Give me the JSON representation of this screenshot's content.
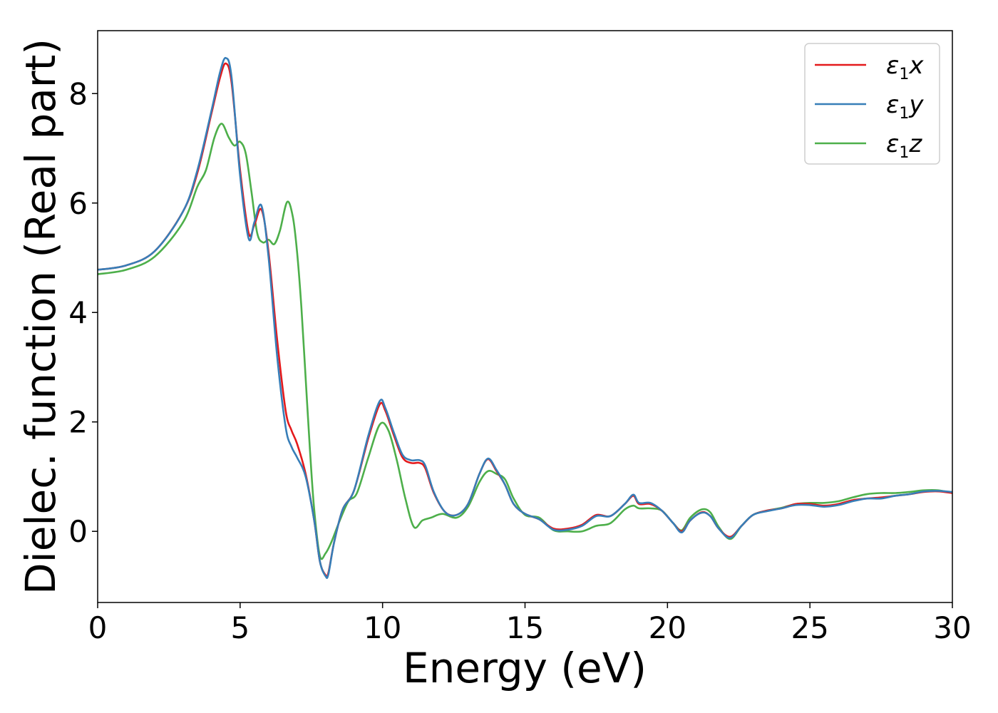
{
  "chart_data": {
    "type": "line",
    "xlabel": "Energy (eV)",
    "ylabel": "Dielec. function (Real part)",
    "xlim": [
      0,
      30
    ],
    "ylim": [
      -1.3,
      9.15
    ],
    "xticks": [
      0,
      5,
      10,
      15,
      20,
      25,
      30
    ],
    "yticks": [
      0,
      2,
      4,
      6,
      8
    ],
    "grid": false,
    "legend_position": "top-right",
    "series": [
      {
        "name": "ε1x",
        "legend": {
          "symbol": "ε",
          "sub": "1",
          "var": "x"
        },
        "color": "#e41a1c",
        "x": [
          0,
          1,
          2,
          3,
          3.5,
          4,
          4.3,
          4.5,
          4.7,
          5,
          5.3,
          5.5,
          5.75,
          6,
          6.3,
          6.6,
          6.8,
          7,
          7.3,
          7.6,
          7.8,
          8,
          8.1,
          8.3,
          8.6,
          9,
          9.5,
          9.9,
          10.1,
          10.4,
          10.7,
          11,
          11.3,
          11.5,
          11.8,
          12.2,
          12.6,
          13,
          13.4,
          13.7,
          14,
          14.3,
          14.6,
          15,
          15.5,
          16,
          16.5,
          17,
          17.5,
          18,
          18.5,
          18.8,
          19,
          19.4,
          19.8,
          20.2,
          20.5,
          20.8,
          21.2,
          21.5,
          21.8,
          22.2,
          22.6,
          23,
          23.5,
          24,
          24.5,
          25,
          25.5,
          26,
          26.5,
          27,
          27.5,
          28,
          28.5,
          29,
          29.5,
          30
        ],
        "y": [
          4.78,
          4.86,
          5.12,
          5.85,
          6.55,
          7.65,
          8.3,
          8.55,
          8.2,
          6.6,
          5.45,
          5.6,
          5.88,
          5.1,
          3.5,
          2.2,
          1.85,
          1.6,
          1.05,
          0.2,
          -0.55,
          -0.8,
          -0.75,
          -0.2,
          0.4,
          0.75,
          1.7,
          2.32,
          2.2,
          1.75,
          1.35,
          1.25,
          1.25,
          1.15,
          0.7,
          0.35,
          0.3,
          0.5,
          1.05,
          1.32,
          1.1,
          0.85,
          0.5,
          0.32,
          0.22,
          0.05,
          0.05,
          0.12,
          0.3,
          0.28,
          0.5,
          0.65,
          0.5,
          0.5,
          0.38,
          0.15,
          0.0,
          0.2,
          0.35,
          0.28,
          0.05,
          -0.1,
          0.1,
          0.3,
          0.38,
          0.42,
          0.5,
          0.5,
          0.47,
          0.5,
          0.57,
          0.6,
          0.62,
          0.65,
          0.68,
          0.72,
          0.73,
          0.7
        ]
      },
      {
        "name": "ε1y",
        "legend": {
          "symbol": "ε",
          "sub": "1",
          "var": "y"
        },
        "color": "#377eb8",
        "x": [
          0,
          1,
          2,
          3,
          3.5,
          4,
          4.3,
          4.5,
          4.7,
          5,
          5.3,
          5.5,
          5.75,
          6,
          6.3,
          6.6,
          6.8,
          7,
          7.3,
          7.6,
          7.8,
          8,
          8.1,
          8.3,
          8.6,
          9,
          9.5,
          9.9,
          10.1,
          10.4,
          10.7,
          11,
          11.3,
          11.5,
          11.8,
          12.2,
          12.6,
          13,
          13.4,
          13.7,
          14,
          14.3,
          14.6,
          15,
          15.5,
          16,
          16.5,
          17,
          17.5,
          18,
          18.5,
          18.8,
          19,
          19.4,
          19.8,
          20.2,
          20.5,
          20.8,
          21.2,
          21.5,
          21.8,
          22.2,
          22.6,
          23,
          23.5,
          24,
          24.5,
          25,
          25.5,
          26,
          26.5,
          27,
          27.5,
          28,
          28.5,
          29,
          29.5,
          30
        ],
        "y": [
          4.78,
          4.86,
          5.12,
          5.85,
          6.6,
          7.7,
          8.4,
          8.65,
          8.3,
          6.5,
          5.35,
          5.65,
          5.95,
          5.0,
          3.2,
          1.9,
          1.55,
          1.35,
          1.0,
          0.2,
          -0.55,
          -0.82,
          -0.78,
          -0.2,
          0.4,
          0.75,
          1.75,
          2.38,
          2.25,
          1.8,
          1.4,
          1.3,
          1.3,
          1.2,
          0.72,
          0.35,
          0.3,
          0.5,
          1.05,
          1.33,
          1.12,
          0.85,
          0.5,
          0.32,
          0.22,
          0.03,
          0.03,
          0.1,
          0.28,
          0.28,
          0.5,
          0.67,
          0.52,
          0.52,
          0.38,
          0.15,
          -0.02,
          0.2,
          0.34,
          0.28,
          0.05,
          -0.12,
          0.1,
          0.3,
          0.37,
          0.42,
          0.48,
          0.48,
          0.45,
          0.48,
          0.55,
          0.6,
          0.6,
          0.65,
          0.68,
          0.73,
          0.74,
          0.72
        ]
      },
      {
        "name": "ε1z",
        "legend": {
          "symbol": "ε",
          "sub": "1",
          "var": "z"
        },
        "color": "#4daf4a",
        "x": [
          0,
          1,
          2,
          3,
          3.5,
          3.8,
          4.1,
          4.35,
          4.6,
          4.8,
          5.0,
          5.2,
          5.4,
          5.6,
          5.8,
          6.0,
          6.2,
          6.4,
          6.65,
          6.85,
          7.0,
          7.15,
          7.3,
          7.45,
          7.6,
          7.8,
          8.0,
          8.2,
          8.5,
          8.8,
          9.1,
          9.5,
          9.9,
          10.2,
          10.5,
          10.8,
          11.1,
          11.4,
          11.7,
          12.1,
          12.6,
          13,
          13.4,
          13.7,
          14,
          14.3,
          14.6,
          15,
          15.5,
          16,
          16.5,
          17,
          17.5,
          18,
          18.5,
          18.8,
          19,
          19.4,
          19.8,
          20.2,
          20.5,
          20.8,
          21.2,
          21.5,
          21.8,
          22.2,
          22.6,
          23,
          23.5,
          24,
          24.5,
          25,
          25.5,
          26,
          26.5,
          27,
          27.5,
          28,
          28.5,
          29,
          29.5,
          30
        ],
        "y": [
          4.7,
          4.78,
          5.02,
          5.65,
          6.3,
          6.6,
          7.2,
          7.45,
          7.2,
          7.05,
          7.12,
          6.9,
          6.2,
          5.45,
          5.28,
          5.33,
          5.25,
          5.5,
          6.02,
          5.75,
          5.1,
          4.1,
          2.8,
          1.5,
          0.4,
          -0.45,
          -0.4,
          -0.2,
          0.2,
          0.55,
          0.7,
          1.35,
          1.95,
          1.85,
          1.3,
          0.6,
          0.08,
          0.2,
          0.25,
          0.32,
          0.25,
          0.45,
          0.9,
          1.1,
          1.05,
          0.95,
          0.6,
          0.3,
          0.25,
          0.02,
          0.0,
          0.0,
          0.1,
          0.15,
          0.4,
          0.47,
          0.42,
          0.42,
          0.38,
          0.15,
          0.02,
          0.25,
          0.4,
          0.35,
          0.08,
          -0.14,
          0.1,
          0.3,
          0.38,
          0.43,
          0.5,
          0.52,
          0.52,
          0.55,
          0.62,
          0.68,
          0.7,
          0.7,
          0.72,
          0.75,
          0.75,
          0.7
        ]
      }
    ]
  }
}
